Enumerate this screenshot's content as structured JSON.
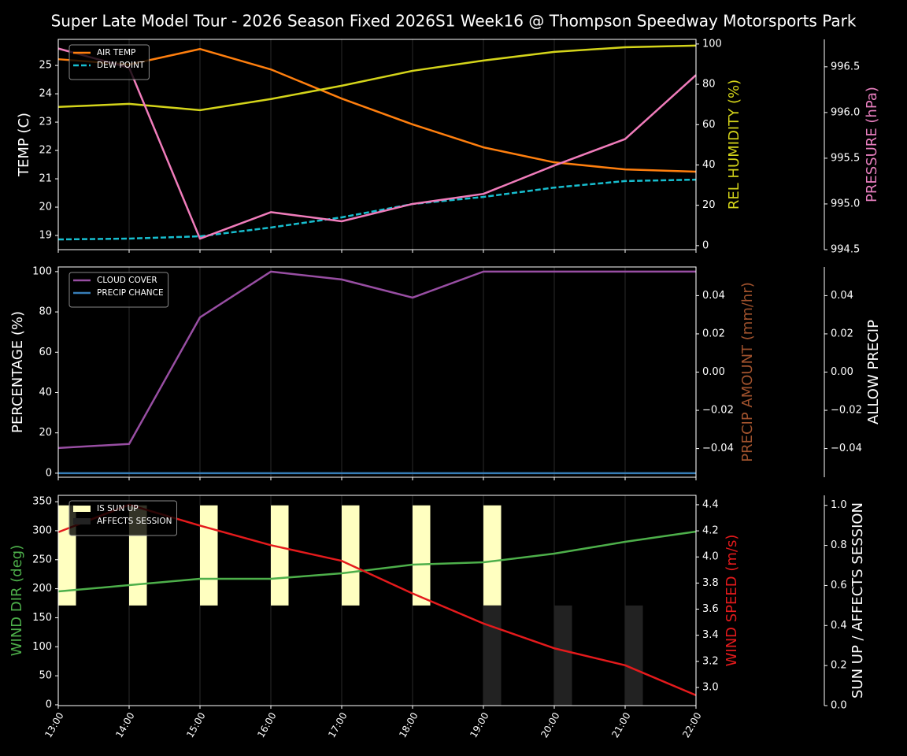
{
  "title": "Super Late Model Tour - 2026 Season Fixed 2026S1 Week16 @ Thompson Speedway Motorsports Park",
  "chart_data": [
    {
      "type": "line",
      "ylabel": "TEMP (C)",
      "ylabel_color": "#ffffff",
      "ylim": [
        18.5,
        25.92
      ],
      "yticks": [
        19,
        20,
        21,
        22,
        23,
        24,
        25
      ],
      "y2label": "REL HUMIDITY (%)",
      "y2label_color": "#d4d41a",
      "y2lim": [
        -2,
        102.3
      ],
      "y2ticks": [
        0,
        20,
        40,
        60,
        80,
        100
      ],
      "y3label": "PRESSURE (hPa)",
      "y3label_color": "#e87fbf",
      "y3lim": [
        994.5,
        996.8
      ],
      "y3ticks": [
        994.5,
        {
          "value": 995,
          "label": "995.0"
        },
        995.5,
        {
          "value": 996,
          "label": "996.0"
        },
        996.5
      ],
      "legend": "upper left",
      "series": [
        {
          "name": "AIR TEMP",
          "color": "#ff7f0e",
          "values": [
            25.22,
            25.03,
            25.58,
            24.86,
            23.83,
            22.92,
            22.11,
            21.58,
            21.33,
            21.25
          ]
        },
        {
          "name": "DEW POINT",
          "color": "#17becf",
          "style": "dashed",
          "values": [
            18.86,
            18.89,
            18.97,
            19.28,
            19.64,
            20.11,
            20.36,
            20.69,
            20.92,
            20.97
          ]
        },
        {
          "color": "#d4d41a",
          "axis": "y2",
          "values": [
            68.8,
            70.3,
            67.2,
            72.7,
            79.3,
            86.7,
            91.8,
            96.1,
            98.4,
            99.2
          ]
        },
        {
          "color": "#f07cbb",
          "axis": "y3",
          "values": [
            996.7,
            996.49,
            994.62,
            994.91,
            994.81,
            995.0,
            995.11,
            995.42,
            995.71,
            996.41
          ]
        }
      ]
    },
    {
      "type": "line",
      "ylabel": "PERCENTAGE (%)",
      "ylabel_color": "#ffffff",
      "ylim": [
        -2,
        102.3
      ],
      "yticks": [
        0,
        20,
        40,
        60,
        80,
        100
      ],
      "y2label": "PRECIP AMOUNT (mm/hr)",
      "y2label_color": "#a0522d",
      "y2lim": [
        -0.055,
        0.055
      ],
      "y2ticks": [
        {
          "value": -0.04,
          "label": "−0.04"
        },
        {
          "value": -0.02,
          "label": "−0.02"
        },
        {
          "value": 0,
          "label": "0.00"
        },
        0.02,
        0.04
      ],
      "y3label": "ALLOW PRECIP",
      "y3label_color": "#ffffff",
      "y3lim": [
        -0.055,
        0.055
      ],
      "y3ticks": [
        {
          "value": -0.04,
          "label": "−0.04"
        },
        {
          "value": -0.02,
          "label": "−0.02"
        },
        {
          "value": 0,
          "label": "0.00"
        },
        0.02,
        0.04
      ],
      "legend": "upper left",
      "series": [
        {
          "name": "CLOUD COVER",
          "color": "#984ea3",
          "values": [
            12.5,
            14.5,
            77.3,
            100,
            96.1,
            87.1,
            100,
            100,
            100,
            100
          ]
        },
        {
          "name": "PRECIP CHANCE",
          "color": "#377eb8",
          "values": [
            0,
            0,
            0,
            0,
            0,
            0,
            0,
            0,
            0,
            0
          ]
        }
      ]
    },
    {
      "type": "line",
      "categories": [
        "13:00",
        "14:00",
        "15:00",
        "16:00",
        "17:00",
        "18:00",
        "19:00",
        "20:00",
        "21:00",
        "22:00"
      ],
      "ylabel": "WIND DIR (deg)",
      "ylabel_color": "#4daf4a",
      "ylim": [
        -1.4,
        361
      ],
      "yticks": [
        0,
        50,
        100,
        150,
        200,
        250,
        300,
        350
      ],
      "y2label": "WIND SPEED (m/s)",
      "y2label_color": "#e41a1c",
      "y2lim": [
        2.861,
        4.472
      ],
      "y2ticks": [
        {
          "value": 3,
          "label": "3.0"
        },
        3.2,
        3.4,
        3.6,
        3.8,
        {
          "value": 4,
          "label": "4.0"
        },
        4.2,
        4.4
      ],
      "y3label": "SUN UP / AFFECTS SESSION",
      "y3label_color": "#ffffff",
      "y3lim": [
        0,
        1.05
      ],
      "y3ticks": [
        {
          "value": 0,
          "label": "0.0"
        },
        0.2,
        0.4,
        0.6,
        0.8,
        {
          "value": 1,
          "label": "1.0"
        }
      ],
      "legend": "upper left",
      "series": [
        {
          "name": "IS SUN UP",
          "type": "bar",
          "color": "#ffffc0",
          "axis": "y3",
          "base": 0.5,
          "values": [
            0.5,
            0.5,
            0.5,
            0.5,
            0.5,
            0.5,
            0.5,
            0,
            0,
            0
          ]
        },
        {
          "name": "AFFECTS SESSION",
          "type": "bar",
          "color": "#222222",
          "axis": "y3",
          "values": [
            0,
            0,
            0,
            0,
            0,
            0,
            0.5,
            0.5,
            0.5,
            0
          ]
        },
        {
          "color": "#4daf4a",
          "values": [
            195.4,
            206.2,
            217.1,
            217.1,
            226.6,
            241.5,
            245.6,
            260.5,
            280.9,
            298.5
          ]
        },
        {
          "color": "#e41a1c",
          "axis": "y2",
          "values": [
            4.19,
            4.4,
            4.24,
            4.09,
            3.97,
            3.72,
            3.49,
            3.3,
            3.17,
            2.94
          ]
        }
      ]
    }
  ]
}
